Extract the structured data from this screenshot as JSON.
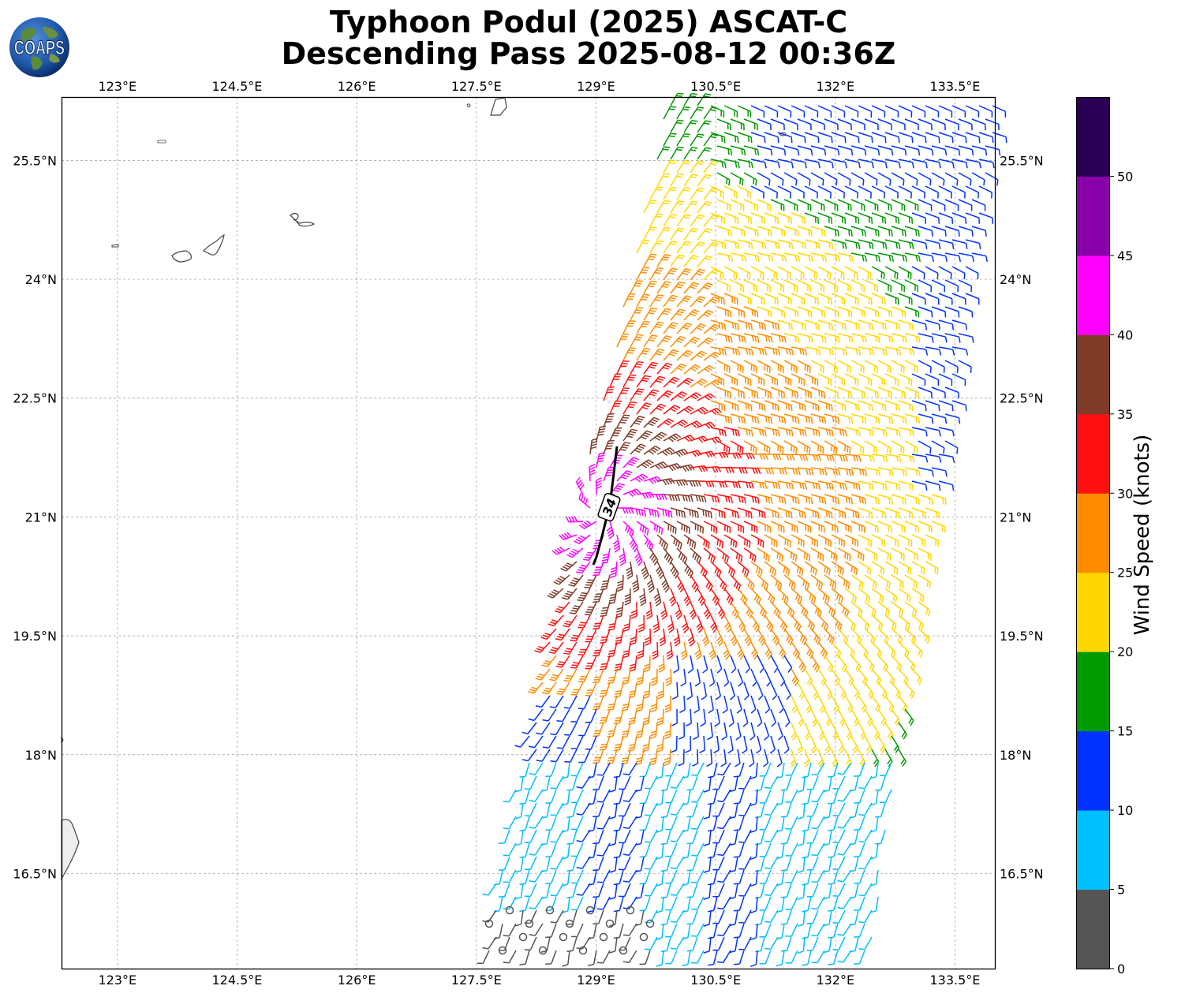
{
  "title": "Typhoon Podul (2025) ASCAT-C",
  "subtitle": "Descending Pass 2025-08-12 00:36Z",
  "logo_text": "COAPS",
  "map": {
    "lon_range": [
      122.3,
      134.0
    ],
    "lat_range": [
      15.3,
      26.3
    ],
    "lon_ticks": [
      "123°E",
      "124.5°E",
      "126°E",
      "127.5°E",
      "129°E",
      "130.5°E",
      "132°E",
      "133.5°E"
    ],
    "lat_ticks": [
      "25.5°N",
      "24°N",
      "22.5°N",
      "21°N",
      "19.5°N",
      "18°N",
      "16.5°N"
    ],
    "radius_label": "34"
  },
  "colorbar": {
    "label": "Wind Speed (knots)",
    "ticks": [
      "0",
      "5",
      "10",
      "15",
      "20",
      "25",
      "30",
      "35",
      "40",
      "45",
      "50"
    ],
    "bins": [
      {
        "range": "0-5",
        "color": "#555555"
      },
      {
        "range": "5-10",
        "color": "#00bfff"
      },
      {
        "range": "10-15",
        "color": "#0033ff"
      },
      {
        "range": "15-20",
        "color": "#009900"
      },
      {
        "range": "20-25",
        "color": "#ffd700"
      },
      {
        "range": "25-30",
        "color": "#ff8c00"
      },
      {
        "range": "30-35",
        "color": "#ff1010"
      },
      {
        "range": "35-40",
        "color": "#803a28"
      },
      {
        "range": "40-45",
        "color": "#ff00ff"
      },
      {
        "range": "45-50",
        "color": "#8800aa"
      },
      {
        "range": "50+",
        "color": "#2a0055"
      }
    ]
  }
}
